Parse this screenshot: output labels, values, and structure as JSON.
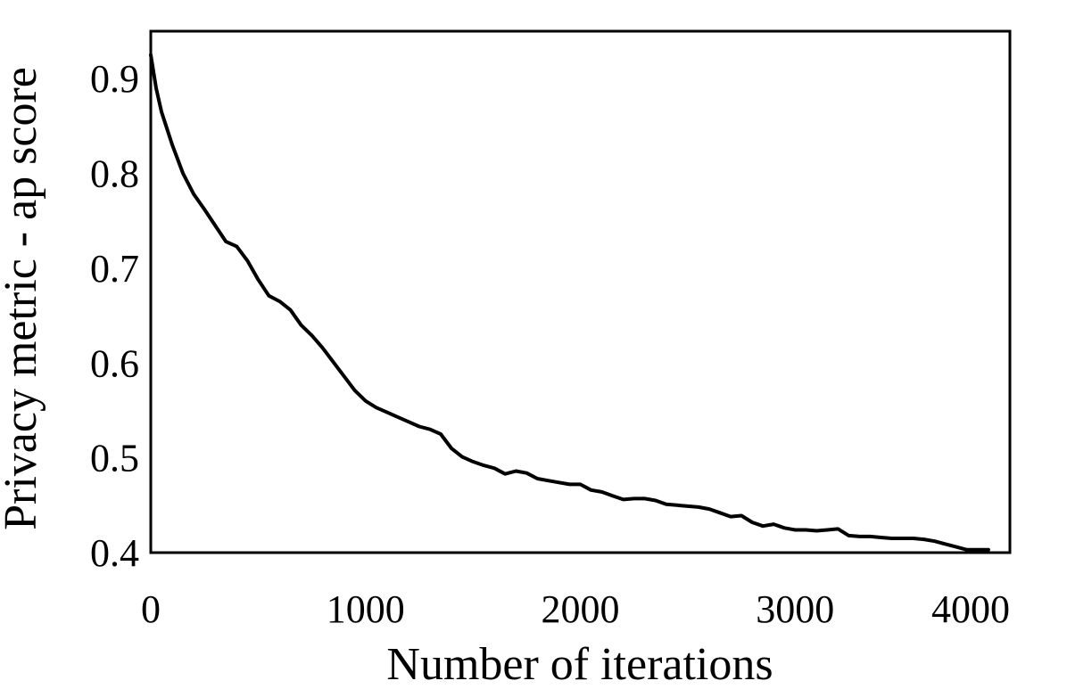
{
  "chart_data": {
    "type": "line",
    "title": "",
    "xlabel": "Number of iterations",
    "ylabel": "Privacy metric - ap score",
    "xlim": [
      0,
      4000
    ],
    "ylim": [
      0.4,
      0.95
    ],
    "xticks": [
      0,
      1000,
      2000,
      3000,
      4000
    ],
    "xtick_labels": [
      "0",
      "1000",
      "2000",
      "3000",
      "4000"
    ],
    "yticks": [
      0.4,
      0.5,
      0.6,
      0.7,
      0.8,
      0.9
    ],
    "ytick_labels": [
      "0.4",
      "0.5",
      "0.6",
      "0.7",
      "0.8",
      "0.9"
    ],
    "grid": false,
    "legend": "none",
    "line_color": "#000000",
    "series": [
      {
        "x": [
          0,
          25,
          50,
          100,
          150,
          200,
          250,
          300,
          350,
          400,
          450,
          500,
          550,
          600,
          650,
          700,
          750,
          800,
          850,
          900,
          950,
          1000,
          1050,
          1100,
          1150,
          1200,
          1250,
          1300,
          1350,
          1400,
          1450,
          1500,
          1550,
          1600,
          1650,
          1700,
          1750,
          1800,
          1850,
          1900,
          1950,
          2000,
          2050,
          2100,
          2150,
          2200,
          2250,
          2300,
          2350,
          2400,
          2450,
          2500,
          2550,
          2600,
          2650,
          2700,
          2750,
          2800,
          2850,
          2900,
          2950,
          3000,
          3050,
          3100,
          3150,
          3200,
          3250,
          3300,
          3350,
          3400,
          3450,
          3500,
          3550,
          3600,
          3650,
          3700,
          3750,
          3800,
          3850,
          3900
        ],
        "y": [
          0.925,
          0.89,
          0.865,
          0.83,
          0.8,
          0.778,
          0.762,
          0.745,
          0.728,
          0.723,
          0.708,
          0.688,
          0.671,
          0.665,
          0.656,
          0.64,
          0.629,
          0.616,
          0.601,
          0.586,
          0.571,
          0.56,
          0.553,
          0.548,
          0.543,
          0.538,
          0.533,
          0.53,
          0.525,
          0.51,
          0.501,
          0.496,
          0.492,
          0.489,
          0.483,
          0.486,
          0.484,
          0.478,
          0.476,
          0.474,
          0.472,
          0.472,
          0.466,
          0.464,
          0.46,
          0.456,
          0.457,
          0.457,
          0.455,
          0.451,
          0.45,
          0.449,
          0.448,
          0.446,
          0.442,
          0.438,
          0.439,
          0.432,
          0.428,
          0.43,
          0.426,
          0.424,
          0.424,
          0.423,
          0.424,
          0.425,
          0.418,
          0.417,
          0.417,
          0.416,
          0.415,
          0.415,
          0.415,
          0.414,
          0.412,
          0.409,
          0.406,
          0.403,
          0.403,
          0.403
        ]
      }
    ]
  }
}
